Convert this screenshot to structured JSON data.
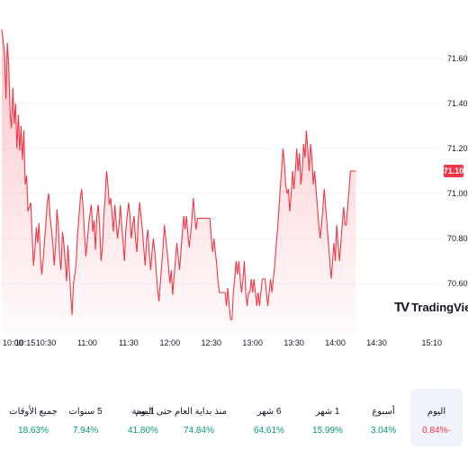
{
  "chart_data": {
    "type": "area",
    "y_ticks": [
      "71.60",
      "71.40",
      "71.20",
      "71.00",
      "70.80",
      "70.60"
    ],
    "ylim": [
      70.38,
      71.78
    ],
    "x_ticks": [
      "10:00",
      "10:15",
      "10:30",
      "11:00",
      "11:30",
      "12:00",
      "12:30",
      "13:00",
      "13:30",
      "14:00",
      "14:30",
      "15:10"
    ],
    "current_price": "71.10",
    "series": [
      {
        "points": [
          [
            "09:58",
            71.73
          ],
          [
            "10:00",
            71.62
          ],
          [
            "10:01",
            71.42
          ],
          [
            "10:02",
            71.67
          ],
          [
            "10:03",
            71.57
          ],
          [
            "10:04",
            71.36
          ],
          [
            "10:05",
            71.29
          ],
          [
            "10:06",
            71.47
          ],
          [
            "10:07",
            71.31
          ],
          [
            "10:08",
            71.4
          ],
          [
            "10:09",
            71.2
          ],
          [
            "10:10",
            71.35
          ],
          [
            "10:11",
            71.19
          ],
          [
            "10:12",
            71.3
          ],
          [
            "10:13",
            71.15
          ],
          [
            "10:14",
            71.28
          ],
          [
            "10:15",
            71.04
          ],
          [
            "10:16",
            71.08
          ],
          [
            "10:17",
            70.92
          ],
          [
            "10:19",
            70.96
          ],
          [
            "10:20",
            70.82
          ],
          [
            "10:21",
            70.68
          ],
          [
            "10:22",
            70.75
          ],
          [
            "10:23",
            70.85
          ],
          [
            "10:24",
            70.78
          ],
          [
            "10:25",
            70.87
          ],
          [
            "10:26",
            70.72
          ],
          [
            "10:27",
            70.64
          ],
          [
            "10:28",
            70.7
          ],
          [
            "10:29",
            70.79
          ],
          [
            "10:30",
            70.87
          ],
          [
            "10:31",
            70.96
          ],
          [
            "10:32",
            71.0
          ],
          [
            "10:33",
            70.9
          ],
          [
            "10:34",
            70.84
          ],
          [
            "10:35",
            70.78
          ],
          [
            "10:36",
            70.68
          ],
          [
            "10:37",
            70.76
          ],
          [
            "10:38",
            70.93
          ],
          [
            "10:39",
            70.86
          ],
          [
            "10:40",
            70.72
          ],
          [
            "10:41",
            70.66
          ],
          [
            "10:42",
            70.83
          ],
          [
            "10:43",
            70.78
          ],
          [
            "10:44",
            70.7
          ],
          [
            "10:45",
            70.61
          ],
          [
            "10:46",
            70.77
          ],
          [
            "10:47",
            70.66
          ],
          [
            "10:48",
            70.55
          ],
          [
            "10:49",
            70.46
          ],
          [
            "10:50",
            70.6
          ],
          [
            "10:51",
            70.64
          ],
          [
            "10:52",
            70.7
          ],
          [
            "10:53",
            70.82
          ],
          [
            "10:54",
            70.9
          ],
          [
            "10:55",
            70.98
          ],
          [
            "10:56",
            71.02
          ],
          [
            "10:57",
            70.94
          ],
          [
            "10:58",
            70.82
          ],
          [
            "10:59",
            70.72
          ],
          [
            "11:00",
            70.78
          ],
          [
            "11:01",
            70.86
          ],
          [
            "11:02",
            70.91
          ],
          [
            "11:03",
            70.95
          ],
          [
            "11:04",
            70.83
          ],
          [
            "11:05",
            70.88
          ],
          [
            "11:06",
            70.75
          ],
          [
            "11:07",
            70.9
          ],
          [
            "11:08",
            70.95
          ],
          [
            "11:09",
            70.85
          ],
          [
            "11:10",
            70.7
          ],
          [
            "11:11",
            70.76
          ],
          [
            "11:12",
            70.9
          ],
          [
            "11:13",
            70.98
          ],
          [
            "11:14",
            71.1
          ],
          [
            "11:15",
            71.04
          ],
          [
            "11:16",
            70.95
          ],
          [
            "11:17",
            70.98
          ],
          [
            "11:18",
            70.91
          ],
          [
            "11:19",
            70.83
          ],
          [
            "11:20",
            70.95
          ],
          [
            "11:21",
            70.87
          ],
          [
            "11:22",
            70.8
          ],
          [
            "11:23",
            70.86
          ],
          [
            "11:24",
            70.95
          ],
          [
            "11:25",
            70.86
          ],
          [
            "11:26",
            70.78
          ],
          [
            "11:27",
            70.7
          ],
          [
            "11:28",
            70.84
          ],
          [
            "11:29",
            70.9
          ],
          [
            "11:30",
            70.96
          ],
          [
            "11:31",
            70.9
          ],
          [
            "11:32",
            70.8
          ],
          [
            "11:33",
            70.86
          ],
          [
            "11:34",
            70.9
          ],
          [
            "11:35",
            70.8
          ],
          [
            "11:36",
            70.74
          ],
          [
            "11:37",
            70.88
          ],
          [
            "11:38",
            70.96
          ],
          [
            "11:39",
            70.9
          ],
          [
            "11:40",
            70.84
          ],
          [
            "11:41",
            70.76
          ],
          [
            "11:42",
            70.68
          ],
          [
            "11:43",
            70.79
          ],
          [
            "11:44",
            70.84
          ],
          [
            "11:45",
            70.74
          ],
          [
            "11:46",
            70.66
          ],
          [
            "11:47",
            70.74
          ],
          [
            "11:48",
            70.8
          ],
          [
            "11:49",
            70.74
          ],
          [
            "11:50",
            70.66
          ],
          [
            "11:51",
            70.58
          ],
          [
            "11:52",
            70.52
          ],
          [
            "11:53",
            70.6
          ],
          [
            "11:54",
            70.68
          ],
          [
            "11:55",
            70.76
          ],
          [
            "11:56",
            70.86
          ],
          [
            "11:57",
            70.8
          ],
          [
            "11:58",
            70.74
          ],
          [
            "11:59",
            70.67
          ],
          [
            "12:00",
            70.6
          ],
          [
            "12:01",
            70.66
          ],
          [
            "12:02",
            70.55
          ],
          [
            "12:03",
            70.63
          ],
          [
            "12:04",
            70.7
          ],
          [
            "12:05",
            70.78
          ],
          [
            "12:06",
            70.72
          ],
          [
            "12:07",
            70.66
          ],
          [
            "12:08",
            70.75
          ],
          [
            "12:09",
            70.82
          ],
          [
            "12:10",
            70.9
          ],
          [
            "12:11",
            70.84
          ],
          [
            "12:12",
            70.9
          ],
          [
            "12:13",
            70.82
          ],
          [
            "12:14",
            70.76
          ],
          [
            "12:15",
            70.82
          ],
          [
            "12:16",
            70.89
          ],
          [
            "12:17",
            70.98
          ],
          [
            "12:18",
            70.9
          ],
          [
            "12:19",
            70.84
          ],
          [
            "12:20",
            70.89
          ],
          [
            "12:21",
            70.89
          ],
          [
            "12:22",
            70.89
          ],
          [
            "12:23",
            70.89
          ],
          [
            "12:24",
            70.89
          ],
          [
            "12:25",
            70.89
          ],
          [
            "12:26",
            70.89
          ],
          [
            "12:27",
            70.89
          ],
          [
            "12:28",
            70.89
          ],
          [
            "12:29",
            70.89
          ],
          [
            "12:30",
            70.8
          ],
          [
            "12:31",
            70.74
          ],
          [
            "12:32",
            70.8
          ],
          [
            "12:33",
            70.74
          ],
          [
            "12:34",
            70.68
          ],
          [
            "12:35",
            70.6
          ],
          [
            "12:36",
            70.56
          ],
          [
            "12:37",
            70.56
          ],
          [
            "12:38",
            70.56
          ],
          [
            "12:39",
            70.56
          ],
          [
            "12:40",
            70.56
          ],
          [
            "12:41",
            70.5
          ],
          [
            "12:42",
            70.58
          ],
          [
            "12:43",
            70.5
          ],
          [
            "12:44",
            70.44
          ],
          [
            "12:45",
            70.44
          ],
          [
            "12:46",
            70.56
          ],
          [
            "12:47",
            70.62
          ],
          [
            "12:48",
            70.7
          ],
          [
            "12:49",
            70.64
          ],
          [
            "12:50",
            70.7
          ],
          [
            "12:51",
            70.62
          ],
          [
            "12:52",
            70.56
          ],
          [
            "12:53",
            70.62
          ],
          [
            "12:54",
            70.7
          ],
          [
            "12:55",
            70.56
          ],
          [
            "12:56",
            70.5
          ],
          [
            "12:57",
            70.56
          ],
          [
            "12:58",
            70.56
          ],
          [
            "12:59",
            70.62
          ],
          [
            "13:00",
            70.56
          ],
          [
            "13:01",
            70.62
          ],
          [
            "13:02",
            70.56
          ],
          [
            "13:03",
            70.5
          ],
          [
            "13:04",
            70.56
          ],
          [
            "13:05",
            70.5
          ],
          [
            "13:06",
            70.56
          ],
          [
            "13:07",
            70.62
          ],
          [
            "13:08",
            70.62
          ],
          [
            "13:09",
            70.62
          ],
          [
            "13:10",
            70.56
          ],
          [
            "13:11",
            70.5
          ],
          [
            "13:12",
            70.56
          ],
          [
            "13:13",
            70.62
          ],
          [
            "13:14",
            70.56
          ],
          [
            "13:15",
            70.62
          ],
          [
            "13:16",
            70.68
          ],
          [
            "13:17",
            70.76
          ],
          [
            "13:18",
            70.84
          ],
          [
            "13:19",
            70.92
          ],
          [
            "13:20",
            71.02
          ],
          [
            "13:21",
            71.1
          ],
          [
            "13:22",
            71.2
          ],
          [
            "13:23",
            71.14
          ],
          [
            "13:24",
            71.04
          ],
          [
            "13:25",
            71.0
          ],
          [
            "13:26",
            71.02
          ],
          [
            "13:27",
            70.92
          ],
          [
            "13:28",
            71.0
          ],
          [
            "13:29",
            71.1
          ],
          [
            "13:30",
            71.02
          ],
          [
            "13:31",
            71.1
          ],
          [
            "13:32",
            71.2
          ],
          [
            "13:33",
            71.1
          ],
          [
            "13:34",
            71.18
          ],
          [
            "13:35",
            71.04
          ],
          [
            "13:36",
            71.1
          ],
          [
            "13:37",
            71.22
          ],
          [
            "13:38",
            71.16
          ],
          [
            "13:39",
            71.28
          ],
          [
            "13:40",
            71.2
          ],
          [
            "13:41",
            71.1
          ],
          [
            "13:42",
            71.22
          ],
          [
            "13:43",
            71.16
          ],
          [
            "13:44",
            71.04
          ],
          [
            "13:45",
            71.1
          ],
          [
            "13:46",
            71.02
          ],
          [
            "13:47",
            70.94
          ],
          [
            "13:48",
            70.86
          ],
          [
            "13:49",
            70.8
          ],
          [
            "13:50",
            70.86
          ],
          [
            "13:51",
            70.94
          ],
          [
            "13:52",
            71.02
          ],
          [
            "13:53",
            70.94
          ],
          [
            "13:54",
            70.86
          ],
          [
            "13:55",
            70.78
          ],
          [
            "13:56",
            70.7
          ],
          [
            "13:57",
            70.62
          ],
          [
            "13:58",
            70.7
          ],
          [
            "13:59",
            70.78
          ],
          [
            "14:00",
            70.7
          ],
          [
            "14:01",
            70.86
          ],
          [
            "14:02",
            70.78
          ],
          [
            "14:03",
            70.7
          ],
          [
            "14:04",
            70.78
          ],
          [
            "14:05",
            70.86
          ],
          [
            "14:06",
            70.94
          ],
          [
            "14:07",
            70.86
          ],
          [
            "14:08",
            70.86
          ],
          [
            "14:09",
            70.94
          ],
          [
            "14:10",
            71.02
          ],
          [
            "14:11",
            71.1
          ],
          [
            "14:12",
            71.1
          ],
          [
            "14:13",
            71.1
          ],
          [
            "14:14",
            71.1
          ],
          [
            "14:15",
            71.1
          ]
        ]
      }
    ]
  },
  "branding": {
    "logo_mark": "TV",
    "logo_text": "TradingView"
  },
  "periods": [
    {
      "label": "اليوم",
      "value": "0.84%-",
      "tone": "neg",
      "active": true
    },
    {
      "label": "أسبوع",
      "value": "3.04%",
      "tone": "pos"
    },
    {
      "label": "1 شهر",
      "value": "15.99%",
      "tone": "pos"
    },
    {
      "label": "6 شهر",
      "value": "64.61%",
      "tone": "pos"
    },
    {
      "label": "منذ بداية العام حتى اليوم",
      "value": "74.84%",
      "tone": "pos"
    },
    {
      "label": "1 سنة",
      "value": "41.80%",
      "tone": "pos"
    },
    {
      "label": "5 سنوات",
      "value": "7.94%",
      "tone": "pos"
    },
    {
      "label": "جميع الأوقات",
      "value": "18.63%",
      "tone": "pos"
    }
  ],
  "colors": {
    "line": "#f23645",
    "fill_top": "#f23645",
    "badge": "#f23645",
    "positive": "#089981",
    "negative": "#f23645"
  }
}
